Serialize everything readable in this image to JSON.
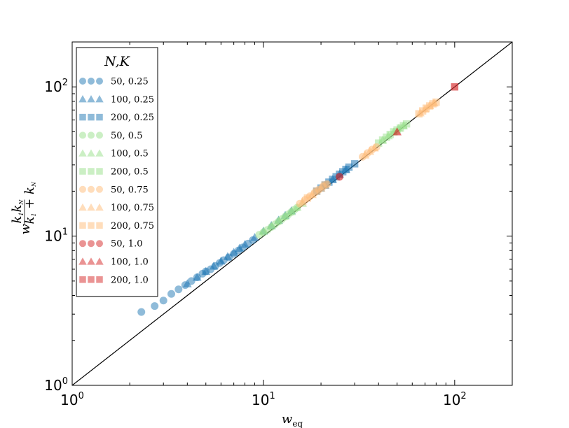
{
  "chart_data": {
    "type": "scatter",
    "xscale": "log",
    "yscale": "log",
    "xlim": [
      1,
      200
    ],
    "ylim": [
      1,
      200
    ],
    "xlabel": "w_eq",
    "ylabel": "w k1 kN / (k1 + kN)",
    "x_ticks": [
      {
        "value": 1,
        "base": "10",
        "exp": "0"
      },
      {
        "value": 10,
        "base": "10",
        "exp": "1"
      },
      {
        "value": 100,
        "base": "10",
        "exp": "2"
      }
    ],
    "y_ticks": [
      {
        "value": 1,
        "base": "10",
        "exp": "0"
      },
      {
        "value": 10,
        "base": "10",
        "exp": "1"
      },
      {
        "value": 100,
        "base": "10",
        "exp": "2"
      }
    ],
    "reference_line": "y = x",
    "grid": false,
    "legend": {
      "title": "N,K",
      "placement": "top-left",
      "entries": [
        {
          "label": "50, 0.25",
          "marker": "circle",
          "color": "#1f77b4"
        },
        {
          "label": "100, 0.25",
          "marker": "triangle",
          "color": "#1f77b4"
        },
        {
          "label": "200, 0.25",
          "marker": "square",
          "color": "#1f77b4"
        },
        {
          "label": "50, 0.5",
          "marker": "circle",
          "color": "#98df8a"
        },
        {
          "label": "100, 0.5",
          "marker": "triangle",
          "color": "#98df8a"
        },
        {
          "label": "200, 0.5",
          "marker": "square",
          "color": "#98df8a"
        },
        {
          "label": "50, 0.75",
          "marker": "circle",
          "color": "#ffbb78"
        },
        {
          "label": "100, 0.75",
          "marker": "triangle",
          "color": "#ffbb78"
        },
        {
          "label": "200, 0.75",
          "marker": "square",
          "color": "#ffbb78"
        },
        {
          "label": "50, 1.0",
          "marker": "circle",
          "color": "#d62728"
        },
        {
          "label": "100, 1.0",
          "marker": "triangle",
          "color": "#d62728"
        },
        {
          "label": "200, 1.0",
          "marker": "square",
          "color": "#d62728"
        }
      ]
    },
    "series": [
      {
        "name": "50, 0.25",
        "marker": "circle",
        "color": "#1f77b4",
        "opacity": 0.5,
        "points": [
          [
            2.3,
            3.1
          ],
          [
            2.7,
            3.4
          ],
          [
            3.0,
            3.7
          ],
          [
            3.3,
            4.1
          ],
          [
            3.6,
            4.4
          ],
          [
            3.9,
            4.7
          ],
          [
            4.2,
            5.0
          ],
          [
            4.5,
            5.3
          ],
          [
            4.8,
            5.6
          ],
          [
            5.0,
            5.8
          ],
          [
            5.3,
            6.0
          ],
          [
            5.6,
            6.3
          ],
          [
            5.9,
            6.6
          ],
          [
            6.2,
            6.9
          ],
          [
            6.6,
            7.2
          ],
          [
            7.0,
            7.6
          ],
          [
            7.4,
            8.0
          ],
          [
            7.8,
            8.4
          ],
          [
            8.3,
            8.9
          ],
          [
            8.8,
            9.4
          ]
        ]
      },
      {
        "name": "100, 0.25",
        "marker": "triangle",
        "color": "#1f77b4",
        "opacity": 0.55,
        "points": [
          [
            4.0,
            4.8
          ],
          [
            4.5,
            5.3
          ],
          [
            5.0,
            5.8
          ],
          [
            5.5,
            6.3
          ],
          [
            6.0,
            6.8
          ],
          [
            6.5,
            7.3
          ],
          [
            7.0,
            7.8
          ],
          [
            7.5,
            8.3
          ],
          [
            8.0,
            8.8
          ],
          [
            9.0,
            9.8
          ],
          [
            10.0,
            10.8
          ],
          [
            11.0,
            11.8
          ],
          [
            12.0,
            12.8
          ],
          [
            13.0,
            13.8
          ],
          [
            14.0,
            14.8
          ],
          [
            21.0,
            22.0
          ],
          [
            23.0,
            24.0
          ],
          [
            25.0,
            26.0
          ],
          [
            27.0,
            28.0
          ]
        ]
      },
      {
        "name": "200, 0.25",
        "marker": "square",
        "color": "#1f77b4",
        "opacity": 0.55,
        "points": [
          [
            19.0,
            20.0
          ],
          [
            20.0,
            21.0
          ],
          [
            21.0,
            22.0
          ],
          [
            22.0,
            23.0
          ],
          [
            23.0,
            24.0
          ],
          [
            24.0,
            25.0
          ],
          [
            25.0,
            26.0
          ],
          [
            26.0,
            27.0
          ],
          [
            27.0,
            28.0
          ],
          [
            28.0,
            29.0
          ],
          [
            30.0,
            30.5
          ]
        ]
      },
      {
        "name": "50, 0.5",
        "marker": "circle",
        "color": "#98df8a",
        "opacity": 0.5,
        "points": [
          [
            9.5,
            10.2
          ],
          [
            10.0,
            10.6
          ],
          [
            10.5,
            11.0
          ],
          [
            11.0,
            11.5
          ],
          [
            11.5,
            12.0
          ],
          [
            12.0,
            12.5
          ],
          [
            12.5,
            13.0
          ],
          [
            13.0,
            13.5
          ],
          [
            13.5,
            14.0
          ],
          [
            14.0,
            14.5
          ],
          [
            14.5,
            15.0
          ],
          [
            15.0,
            15.5
          ]
        ]
      },
      {
        "name": "100, 0.5",
        "marker": "triangle",
        "color": "#98df8a",
        "opacity": 0.5,
        "points": [
          [
            10.0,
            10.8
          ],
          [
            11.0,
            11.7
          ],
          [
            12.0,
            12.7
          ],
          [
            13.0,
            13.6
          ],
          [
            14.0,
            14.6
          ],
          [
            15.0,
            15.6
          ],
          [
            16.0,
            16.6
          ],
          [
            42.0,
            44.0
          ],
          [
            45.0,
            47.0
          ],
          [
            48.0,
            50.0
          ],
          [
            51.0,
            53.0
          ],
          [
            54.0,
            55.0
          ]
        ]
      },
      {
        "name": "200, 0.5",
        "marker": "square",
        "color": "#98df8a",
        "opacity": 0.5,
        "points": [
          [
            40.0,
            42.0
          ],
          [
            42.0,
            44.0
          ],
          [
            44.0,
            46.0
          ],
          [
            46.0,
            48.0
          ],
          [
            48.0,
            50.0
          ],
          [
            50.0,
            51.5
          ],
          [
            52.0,
            53.0
          ],
          [
            54.0,
            55.0
          ],
          [
            56.0,
            56.5
          ]
        ]
      },
      {
        "name": "50, 0.75",
        "marker": "circle",
        "color": "#ffbb78",
        "opacity": 0.55,
        "points": [
          [
            15.5,
            16.5
          ],
          [
            16.5,
            17.5
          ],
          [
            17.5,
            18.5
          ],
          [
            18.5,
            19.5
          ],
          [
            19.5,
            20.5
          ],
          [
            20.5,
            21.5
          ],
          [
            21.5,
            22.3
          ],
          [
            33.0,
            34.0
          ],
          [
            35.0,
            36.0
          ],
          [
            37.0,
            38.0
          ],
          [
            39.0,
            39.5
          ]
        ]
      },
      {
        "name": "100, 0.75",
        "marker": "triangle",
        "color": "#ffbb78",
        "opacity": 0.55,
        "points": [
          [
            16.0,
            17.0
          ],
          [
            18.0,
            19.0
          ],
          [
            20.0,
            21.0
          ],
          [
            34.0,
            35.0
          ],
          [
            36.0,
            37.0
          ],
          [
            38.0,
            39.0
          ],
          [
            66.0,
            67.0
          ],
          [
            70.0,
            71.0
          ],
          [
            74.0,
            75.0
          ],
          [
            78.0,
            78.0
          ]
        ]
      },
      {
        "name": "200, 0.75",
        "marker": "square",
        "color": "#ffbb78",
        "opacity": 0.55,
        "points": [
          [
            17.0,
            18.0
          ],
          [
            19.0,
            20.0
          ],
          [
            21.0,
            22.0
          ],
          [
            65.0,
            66.0
          ],
          [
            68.0,
            69.0
          ],
          [
            71.0,
            72.0
          ],
          [
            74.0,
            74.5
          ],
          [
            77.0,
            77.0
          ],
          [
            80.0,
            79.0
          ]
        ]
      },
      {
        "name": "50, 1.0",
        "marker": "circle",
        "color": "#d62728",
        "opacity": 0.65,
        "points": [
          [
            25.0,
            25.0
          ]
        ]
      },
      {
        "name": "100, 1.0",
        "marker": "triangle",
        "color": "#d62728",
        "opacity": 0.65,
        "points": [
          [
            50.0,
            50.0
          ]
        ]
      },
      {
        "name": "200, 1.0",
        "marker": "square",
        "color": "#d62728",
        "opacity": 0.65,
        "points": [
          [
            100.0,
            100.0
          ]
        ]
      }
    ]
  }
}
